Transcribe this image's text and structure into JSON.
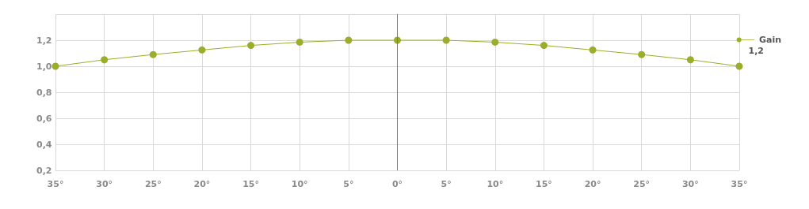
{
  "chart_data": {
    "type": "line",
    "x": [
      -35,
      -30,
      -25,
      -20,
      -15,
      -10,
      -5,
      0,
      5,
      10,
      15,
      20,
      25,
      30,
      35
    ],
    "series": [
      {
        "name": "Gain",
        "color": "#9cad2b",
        "values": [
          1.0,
          1.05,
          1.09,
          1.125,
          1.16,
          1.185,
          1.2,
          1.2,
          1.2,
          1.185,
          1.16,
          1.125,
          1.09,
          1.05,
          1.0
        ]
      }
    ],
    "xlim": [
      -35,
      35
    ],
    "xticks": [
      {
        "value": -35,
        "label": "35°"
      },
      {
        "value": -30,
        "label": "30°"
      },
      {
        "value": -25,
        "label": "25°"
      },
      {
        "value": -20,
        "label": "20°"
      },
      {
        "value": -15,
        "label": "15°"
      },
      {
        "value": -10,
        "label": "10°"
      },
      {
        "value": -5,
        "label": "5°"
      },
      {
        "value": 0,
        "label": "0°"
      },
      {
        "value": 5,
        "label": "5°"
      },
      {
        "value": 10,
        "label": "10°"
      },
      {
        "value": 15,
        "label": "15°"
      },
      {
        "value": 20,
        "label": "20°"
      },
      {
        "value": 25,
        "label": "25°"
      },
      {
        "value": 30,
        "label": "30°"
      },
      {
        "value": 35,
        "label": "35°"
      }
    ],
    "ylim": [
      0.2,
      1.4
    ],
    "yticks": [
      {
        "value": 0.2,
        "label": "0,2"
      },
      {
        "value": 0.4,
        "label": "0,4"
      },
      {
        "value": 0.6,
        "label": "0,6"
      },
      {
        "value": 0.8,
        "label": "0,8"
      },
      {
        "value": 1.0,
        "label": "1,0"
      },
      {
        "value": 1.2,
        "label": "1,2"
      },
      {
        "value": 1.4,
        "label": null
      }
    ],
    "ref_lines": [
      {
        "axis": "x",
        "value": 0,
        "color": "#777777"
      }
    ],
    "annotations": [
      "1,2"
    ],
    "grid": true,
    "legend": "right",
    "marker": "circle",
    "line_style": "solid"
  }
}
